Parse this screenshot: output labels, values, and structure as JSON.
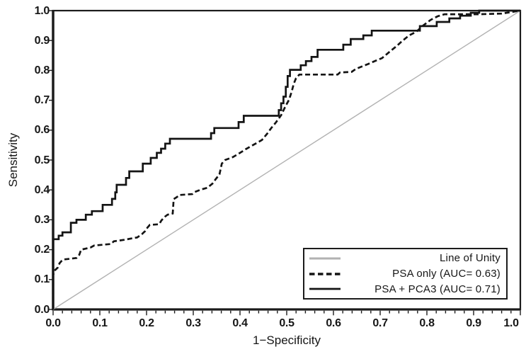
{
  "figure": {
    "background": "#ffffff",
    "text_color": "#161616"
  },
  "colors": {
    "curve_black": "#141414",
    "unity_gray": "#b2b2b2",
    "frame": "#1c1c1c"
  },
  "chart_data": {
    "type": "line",
    "subtype": "roc_step_curves",
    "title": "",
    "xlabel": "1−Specificity",
    "ylabel": "Sensitivity",
    "xlim": [
      0,
      1
    ],
    "ylim": [
      0,
      1
    ],
    "grid": false,
    "x_ticks": [
      "0.0",
      "0.1",
      "0.2",
      "0.3",
      "0.4",
      "0.5",
      "0.6",
      "0.7",
      "0.8",
      "0.9",
      "1.0"
    ],
    "y_ticks": [
      "0.0",
      "0.1",
      "0.2",
      "0.3",
      "0.4",
      "0.5",
      "0.6",
      "0.7",
      "0.8",
      "0.9",
      "1.0"
    ],
    "minor_tick_step": 0.02,
    "legend_position": "bottom-right",
    "legend_entries": [
      {
        "label": "Line of Unity",
        "sample": "unity"
      },
      {
        "label": "PSA only (AUC= 0.63)",
        "sample": "dashed"
      },
      {
        "label": "PSA + PCA3 (AUC= 0.71)",
        "sample": "solid"
      }
    ],
    "series": [
      {
        "name": "Line of Unity",
        "auc": null,
        "style": "unity",
        "points": [
          [
            0,
            0
          ],
          [
            1,
            1
          ]
        ]
      },
      {
        "name": "PSA only",
        "auc": 0.63,
        "style": "dashed",
        "points": [
          [
            0,
            0
          ],
          [
            0,
            0.115
          ],
          [
            0.004,
            0.131
          ],
          [
            0.01,
            0.14
          ],
          [
            0.014,
            0.155
          ],
          [
            0.018,
            0.162
          ],
          [
            0.022,
            0.167
          ],
          [
            0.05,
            0.172
          ],
          [
            0.056,
            0.183
          ],
          [
            0.06,
            0.2
          ],
          [
            0.08,
            0.207
          ],
          [
            0.088,
            0.214
          ],
          [
            0.124,
            0.219
          ],
          [
            0.13,
            0.228
          ],
          [
            0.152,
            0.233
          ],
          [
            0.18,
            0.241
          ],
          [
            0.19,
            0.252
          ],
          [
            0.197,
            0.262
          ],
          [
            0.202,
            0.274
          ],
          [
            0.207,
            0.283
          ],
          [
            0.227,
            0.285
          ],
          [
            0.232,
            0.298
          ],
          [
            0.239,
            0.31
          ],
          [
            0.245,
            0.317
          ],
          [
            0.256,
            0.321
          ],
          [
            0.258,
            0.369
          ],
          [
            0.265,
            0.376
          ],
          [
            0.27,
            0.383
          ],
          [
            0.298,
            0.386
          ],
          [
            0.303,
            0.393
          ],
          [
            0.318,
            0.402
          ],
          [
            0.33,
            0.407
          ],
          [
            0.341,
            0.421
          ],
          [
            0.348,
            0.436
          ],
          [
            0.356,
            0.452
          ],
          [
            0.361,
            0.488
          ],
          [
            0.368,
            0.5
          ],
          [
            0.385,
            0.51
          ],
          [
            0.4,
            0.524
          ],
          [
            0.412,
            0.536
          ],
          [
            0.43,
            0.552
          ],
          [
            0.447,
            0.567
          ],
          [
            0.458,
            0.588
          ],
          [
            0.467,
            0.607
          ],
          [
            0.477,
            0.626
          ],
          [
            0.488,
            0.65
          ],
          [
            0.497,
            0.679
          ],
          [
            0.505,
            0.702
          ],
          [
            0.511,
            0.731
          ],
          [
            0.515,
            0.755
          ],
          [
            0.52,
            0.774
          ],
          [
            0.527,
            0.786
          ],
          [
            0.609,
            0.786
          ],
          [
            0.614,
            0.793
          ],
          [
            0.639,
            0.795
          ],
          [
            0.648,
            0.805
          ],
          [
            0.674,
            0.821
          ],
          [
            0.69,
            0.832
          ],
          [
            0.704,
            0.841
          ],
          [
            0.72,
            0.862
          ],
          [
            0.735,
            0.881
          ],
          [
            0.747,
            0.898
          ],
          [
            0.762,
            0.917
          ],
          [
            0.777,
            0.929
          ],
          [
            0.792,
            0.95
          ],
          [
            0.808,
            0.969
          ],
          [
            0.823,
            0.981
          ],
          [
            0.838,
            0.988
          ],
          [
            0.913,
            0.988
          ],
          [
            0.96,
            0.99
          ],
          [
            1,
            1
          ]
        ]
      },
      {
        "name": "PSA + PCA3",
        "auc": 0.71,
        "style": "solid",
        "points": [
          [
            0,
            0
          ],
          [
            0,
            0.235
          ],
          [
            0.012,
            0.235
          ],
          [
            0.012,
            0.247
          ],
          [
            0.02,
            0.247
          ],
          [
            0.02,
            0.258
          ],
          [
            0.038,
            0.258
          ],
          [
            0.038,
            0.29
          ],
          [
            0.05,
            0.29
          ],
          [
            0.05,
            0.3
          ],
          [
            0.07,
            0.3
          ],
          [
            0.07,
            0.317
          ],
          [
            0.083,
            0.317
          ],
          [
            0.083,
            0.329
          ],
          [
            0.106,
            0.329
          ],
          [
            0.106,
            0.35
          ],
          [
            0.126,
            0.35
          ],
          [
            0.126,
            0.37
          ],
          [
            0.133,
            0.37
          ],
          [
            0.133,
            0.392
          ],
          [
            0.136,
            0.392
          ],
          [
            0.136,
            0.417
          ],
          [
            0.156,
            0.417
          ],
          [
            0.156,
            0.44
          ],
          [
            0.163,
            0.44
          ],
          [
            0.163,
            0.462
          ],
          [
            0.192,
            0.462
          ],
          [
            0.192,
            0.488
          ],
          [
            0.209,
            0.488
          ],
          [
            0.209,
            0.507
          ],
          [
            0.222,
            0.507
          ],
          [
            0.222,
            0.524
          ],
          [
            0.231,
            0.524
          ],
          [
            0.231,
            0.538
          ],
          [
            0.24,
            0.538
          ],
          [
            0.24,
            0.555
          ],
          [
            0.25,
            0.555
          ],
          [
            0.25,
            0.571
          ],
          [
            0.338,
            0.571
          ],
          [
            0.338,
            0.59
          ],
          [
            0.345,
            0.59
          ],
          [
            0.345,
            0.607
          ],
          [
            0.397,
            0.607
          ],
          [
            0.397,
            0.627
          ],
          [
            0.408,
            0.627
          ],
          [
            0.408,
            0.648
          ],
          [
            0.483,
            0.648
          ],
          [
            0.483,
            0.667
          ],
          [
            0.488,
            0.667
          ],
          [
            0.488,
            0.69
          ],
          [
            0.493,
            0.69
          ],
          [
            0.493,
            0.712
          ],
          [
            0.498,
            0.712
          ],
          [
            0.498,
            0.745
          ],
          [
            0.502,
            0.745
          ],
          [
            0.502,
            0.781
          ],
          [
            0.507,
            0.781
          ],
          [
            0.507,
            0.802
          ],
          [
            0.53,
            0.802
          ],
          [
            0.53,
            0.817
          ],
          [
            0.541,
            0.817
          ],
          [
            0.541,
            0.831
          ],
          [
            0.553,
            0.831
          ],
          [
            0.553,
            0.845
          ],
          [
            0.566,
            0.845
          ],
          [
            0.566,
            0.869
          ],
          [
            0.621,
            0.869
          ],
          [
            0.621,
            0.886
          ],
          [
            0.637,
            0.886
          ],
          [
            0.637,
            0.905
          ],
          [
            0.664,
            0.905
          ],
          [
            0.664,
            0.917
          ],
          [
            0.682,
            0.917
          ],
          [
            0.682,
            0.933
          ],
          [
            0.785,
            0.933
          ],
          [
            0.785,
            0.948
          ],
          [
            0.821,
            0.948
          ],
          [
            0.821,
            0.962
          ],
          [
            0.848,
            0.962
          ],
          [
            0.848,
            0.974
          ],
          [
            0.871,
            0.974
          ],
          [
            0.871,
            0.983
          ],
          [
            0.894,
            0.983
          ],
          [
            0.894,
            0.993
          ],
          [
            0.912,
            0.993
          ],
          [
            0.912,
            1
          ],
          [
            1,
            1
          ]
        ]
      }
    ]
  }
}
